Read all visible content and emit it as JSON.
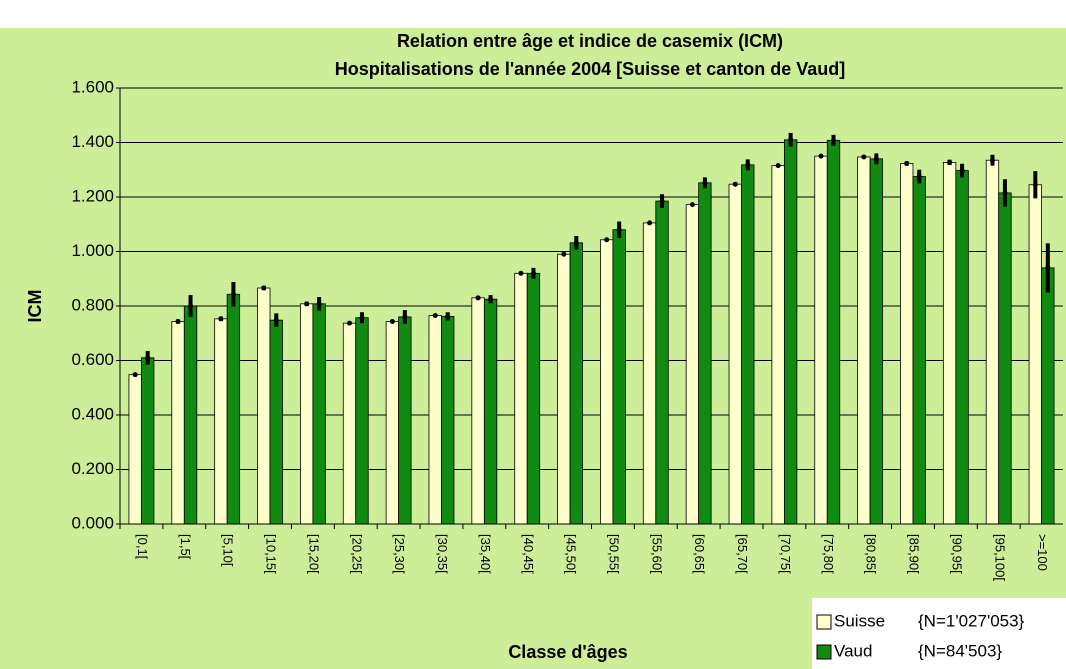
{
  "chart_data": {
    "type": "bar",
    "title": "Relation entre âge et indice de casemix (ICM)",
    "subtitle": "Hospitalisations de l'année 2004 [Suisse et canton de Vaud]",
    "y_label": "ICM",
    "x_label": "Classe d'âges",
    "categories": [
      "[0,1[",
      "[1,5[",
      "[5,10[",
      "[10,15[",
      "[15,20[",
      "[20,25[",
      "[25,30[",
      "[30,35[",
      "[35,40[",
      "[40,45[",
      "[45,50[",
      "[50,55[",
      "[55,60[",
      "[60,65[",
      "[65,70[",
      "[70,75[",
      "[75,80[",
      "[80,85[",
      "[85,90[",
      "[90,95[",
      "[95,100[",
      ">=100"
    ],
    "series": [
      {
        "name": "Suisse",
        "note": "{N=1'027'053}",
        "color": "#ffffcc",
        "values": [
          0.548,
          0.743,
          0.753,
          0.866,
          0.808,
          0.737,
          0.743,
          0.765,
          0.83,
          0.92,
          0.99,
          1.043,
          1.105,
          1.172,
          1.247,
          1.315,
          1.35,
          1.347,
          1.323,
          1.327,
          1.335,
          1.245
        ],
        "errors": [
          0.005,
          0.008,
          0.008,
          0.008,
          0.008,
          0.005,
          0.005,
          0.005,
          0.005,
          0.005,
          0.005,
          0.005,
          0.005,
          0.005,
          0.005,
          0.005,
          0.005,
          0.005,
          0.008,
          0.01,
          0.02,
          0.05
        ]
      },
      {
        "name": "Vaud",
        "note": "{N=84'503}",
        "color": "#108a10",
        "values": [
          0.61,
          0.8,
          0.843,
          0.748,
          0.808,
          0.757,
          0.76,
          0.762,
          0.825,
          0.92,
          1.032,
          1.08,
          1.185,
          1.252,
          1.318,
          1.41,
          1.408,
          1.34,
          1.275,
          1.297,
          1.215,
          0.94
        ],
        "errors": [
          0.025,
          0.04,
          0.045,
          0.025,
          0.025,
          0.02,
          0.025,
          0.015,
          0.015,
          0.02,
          0.025,
          0.03,
          0.025,
          0.02,
          0.02,
          0.025,
          0.02,
          0.02,
          0.025,
          0.025,
          0.05,
          0.09
        ]
      }
    ],
    "ylim": [
      0,
      1.6
    ],
    "yticks": [
      {
        "value": 0,
        "label": "0.000"
      },
      {
        "value": 0.2,
        "label": "0.200"
      },
      {
        "value": 0.4,
        "label": "0.400"
      },
      {
        "value": 0.6,
        "label": "0.600"
      },
      {
        "value": 0.8,
        "label": "0.800"
      },
      {
        "value": 1.0,
        "label": "1.000"
      },
      {
        "value": 1.2,
        "label": "1.200"
      },
      {
        "value": 1.4,
        "label": "1.400"
      },
      {
        "value": 1.6,
        "label": "1.600"
      }
    ],
    "grid": true
  }
}
